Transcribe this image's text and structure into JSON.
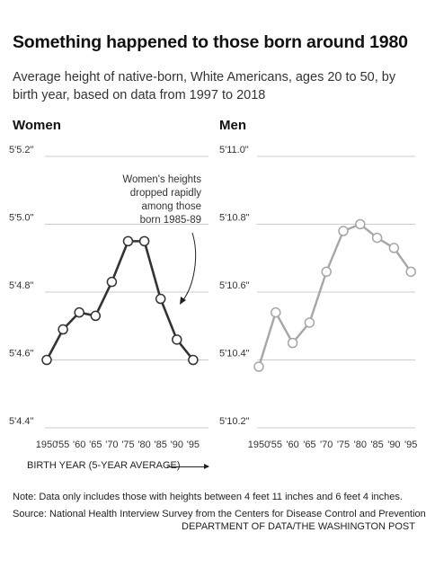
{
  "header": {
    "title": "Something happened to those born around 1980",
    "subtitle": "Average height of native-born, White Americans, ages 20 to 50, by birth year, based on data from 1997 to 2018"
  },
  "colors": {
    "women_line": "#333333",
    "men_line": "#a6a6a6",
    "grid": "#cccccc",
    "marker_fill": "#ffffff"
  },
  "chart_data": [
    {
      "type": "line",
      "title": "Women",
      "xlabel": "BIRTH YEAR (5-YEAR AVERAGE)",
      "x": [
        1950,
        1955,
        1960,
        1965,
        1970,
        1975,
        1980,
        1985,
        1990,
        1995
      ],
      "x_tick_labels": [
        "1950",
        "'55",
        "'60",
        "'65",
        "'70",
        "'75",
        "'80",
        "'85",
        "'90",
        "'95"
      ],
      "values_inches": [
        64.6,
        64.69,
        64.74,
        64.73,
        64.83,
        64.95,
        64.95,
        64.78,
        64.66,
        64.6
      ],
      "ylim_inches": [
        64.4,
        65.2
      ],
      "y_ticks_inches": [
        64.4,
        64.6,
        64.8,
        65.0,
        65.2
      ],
      "y_tick_labels": [
        "5'4.4\"",
        "5'4.6\"",
        "5'4.8\"",
        "5'5.0\"",
        "5'5.2\""
      ],
      "grid": true,
      "annotation": [
        "Women's heights",
        "dropped rapidly",
        "among those",
        "born 1985-89"
      ]
    },
    {
      "type": "line",
      "title": "Men",
      "x": [
        1950,
        1955,
        1960,
        1965,
        1970,
        1975,
        1980,
        1985,
        1990,
        1995
      ],
      "x_tick_labels": [
        "1950",
        "'55",
        "'60",
        "'65",
        "'70",
        "'75",
        "'80",
        "'85",
        "'90",
        "'95"
      ],
      "values_inches": [
        70.38,
        70.54,
        70.45,
        70.51,
        70.66,
        70.78,
        70.8,
        70.76,
        70.73,
        70.66
      ],
      "ylim_inches": [
        70.2,
        71.0
      ],
      "y_ticks_inches": [
        70.2,
        70.4,
        70.6,
        70.8,
        71.0
      ],
      "y_tick_labels": [
        "5'10.2\"",
        "5'10.4\"",
        "5'10.6\"",
        "5'10.8\"",
        "5'11.0\""
      ],
      "grid": true
    }
  ],
  "footer": {
    "note": "Note: Data only includes those with heights between 4 feet 11 inches and 6 feet 4 inches.",
    "source": "Source: National Health Interview Survey from the Centers for Disease Control and Prevention",
    "credit": "DEPARTMENT OF DATA/THE WASHINGTON POST"
  }
}
